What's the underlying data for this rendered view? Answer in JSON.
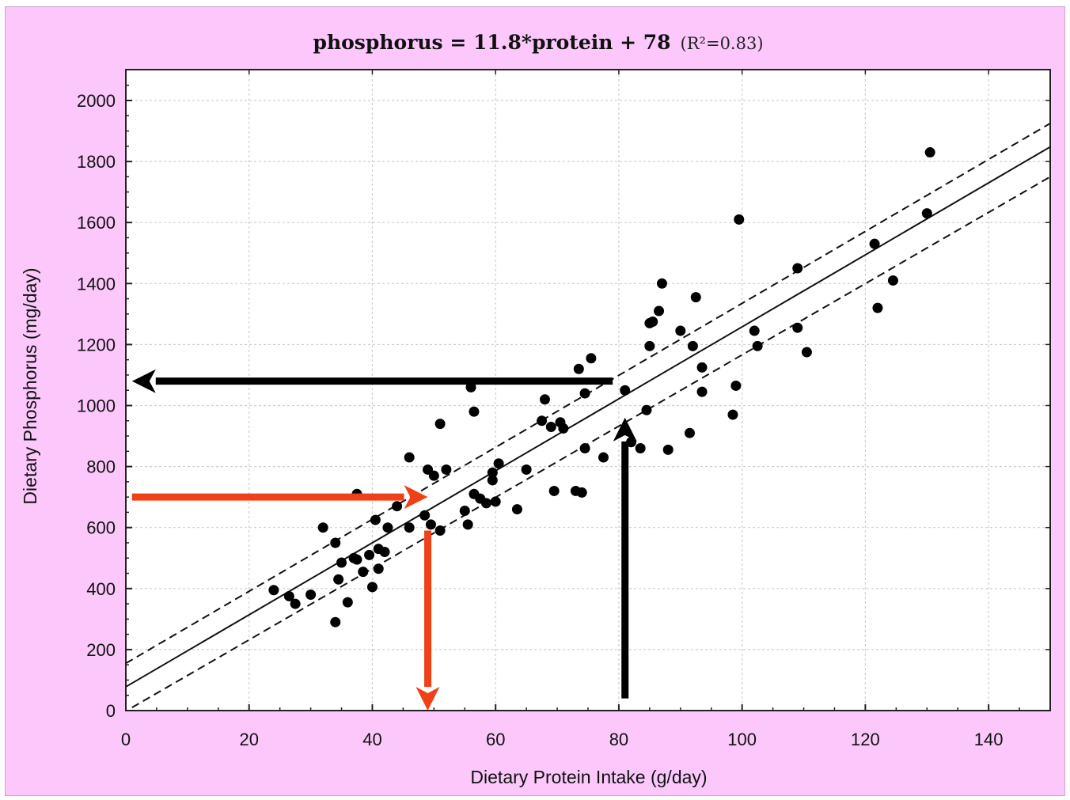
{
  "chart_data": {
    "type": "scatter",
    "title": "phosphorus = 11.8*protein + 78",
    "subtitle": "(R²=0.83)",
    "xlabel": "Dietary Protein Intake (g/day)",
    "ylabel": "Dietary Phosphorus (mg/day)",
    "xlim": [
      0,
      150
    ],
    "ylim": [
      0,
      2100
    ],
    "xticks": [
      0,
      20,
      40,
      60,
      80,
      100,
      120,
      140
    ],
    "yticks": [
      0,
      200,
      400,
      600,
      800,
      1000,
      1200,
      1400,
      1600,
      1800,
      2000
    ],
    "grid": true,
    "regression": {
      "slope": 11.8,
      "intercept": 78,
      "r2": 0.83
    },
    "confidence_band": {
      "lower": [
        [
          1,
          10
        ],
        [
          150,
          1750
        ]
      ],
      "upper": [
        [
          0,
          155
        ],
        [
          150,
          1925
        ]
      ]
    },
    "points": [
      [
        24,
        395
      ],
      [
        26.5,
        375
      ],
      [
        27.5,
        350
      ],
      [
        30,
        380
      ],
      [
        32,
        600
      ],
      [
        34,
        550
      ],
      [
        34,
        290
      ],
      [
        34.5,
        430
      ],
      [
        35,
        485
      ],
      [
        36,
        355
      ],
      [
        37,
        500
      ],
      [
        37.5,
        495
      ],
      [
        37.5,
        710
      ],
      [
        38.5,
        455
      ],
      [
        39.5,
        510
      ],
      [
        40,
        405
      ],
      [
        40.5,
        625
      ],
      [
        41,
        530
      ],
      [
        41,
        465
      ],
      [
        42,
        520
      ],
      [
        42.5,
        600
      ],
      [
        44,
        670
      ],
      [
        46,
        830
      ],
      [
        46,
        600
      ],
      [
        48.5,
        640
      ],
      [
        49,
        790
      ],
      [
        49.5,
        610
      ],
      [
        50,
        770
      ],
      [
        51,
        940
      ],
      [
        51,
        590
      ],
      [
        52,
        790
      ],
      [
        55,
        655
      ],
      [
        55.5,
        610
      ],
      [
        56,
        1060
      ],
      [
        56.5,
        980
      ],
      [
        56.5,
        710
      ],
      [
        57.5,
        695
      ],
      [
        58.5,
        680
      ],
      [
        59.5,
        780
      ],
      [
        59.5,
        755
      ],
      [
        60,
        685
      ],
      [
        60.5,
        810
      ],
      [
        63.5,
        660
      ],
      [
        65,
        790
      ],
      [
        67.5,
        950
      ],
      [
        68,
        1020
      ],
      [
        69,
        930
      ],
      [
        69.5,
        720
      ],
      [
        70.5,
        945
      ],
      [
        71,
        925
      ],
      [
        73,
        720
      ],
      [
        73.5,
        1120
      ],
      [
        74,
        715
      ],
      [
        74.5,
        1040
      ],
      [
        74.5,
        860
      ],
      [
        75.5,
        1155
      ],
      [
        77.5,
        830
      ],
      [
        81,
        1050
      ],
      [
        82,
        880
      ],
      [
        83.5,
        860
      ],
      [
        84.5,
        985
      ],
      [
        85,
        1195
      ],
      [
        85,
        1270
      ],
      [
        85.5,
        1275
      ],
      [
        86.5,
        1310
      ],
      [
        87,
        1400
      ],
      [
        88,
        855
      ],
      [
        90,
        1245
      ],
      [
        91.5,
        910
      ],
      [
        92,
        1195
      ],
      [
        92.5,
        1355
      ],
      [
        93.5,
        1125
      ],
      [
        93.5,
        1045
      ],
      [
        98.5,
        970
      ],
      [
        99,
        1065
      ],
      [
        99.5,
        1610
      ],
      [
        102,
        1245
      ],
      [
        102.5,
        1195
      ],
      [
        109,
        1450
      ],
      [
        109,
        1255
      ],
      [
        110.5,
        1175
      ],
      [
        121.5,
        1530
      ],
      [
        122,
        1320
      ],
      [
        124.5,
        1410
      ],
      [
        130,
        1630
      ],
      [
        130.5,
        1830
      ]
    ],
    "annotations": [
      {
        "kind": "arrow",
        "color": "#000000",
        "from": [
          79,
          1080
        ],
        "to": [
          1,
          1080
        ]
      },
      {
        "kind": "arrow",
        "color": "#000000",
        "from": [
          81,
          40
        ],
        "to": [
          81,
          960
        ]
      },
      {
        "kind": "arrow",
        "color": "#f04018",
        "from": [
          1,
          700
        ],
        "to": [
          49,
          700
        ]
      },
      {
        "kind": "arrow",
        "color": "#f04018",
        "from": [
          49,
          590
        ],
        "to": [
          49,
          0
        ]
      }
    ]
  },
  "colors": {
    "background": "#fcc8fc",
    "plot_area": "#ffffff",
    "grid": "#cfcfcf",
    "points": "#000000",
    "arrow_black": "#000000",
    "arrow_red": "#f04018"
  }
}
